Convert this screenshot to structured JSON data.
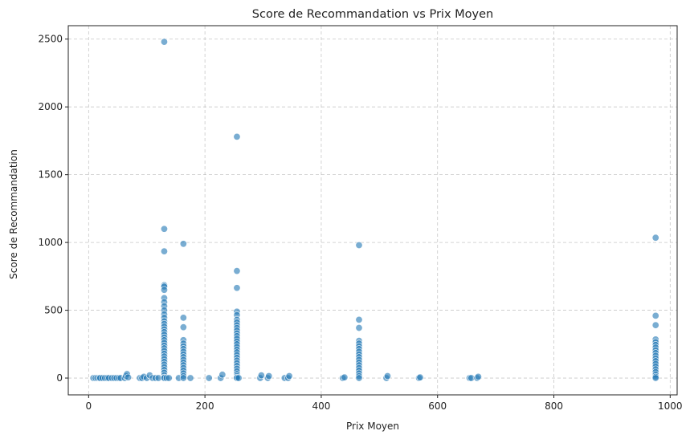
{
  "chart_data": {
    "type": "scatter",
    "title": "Score de Recommandation vs Prix Moyen",
    "xlabel": "Prix Moyen",
    "ylabel": "Score de Recommandation",
    "xlim": [
      -35,
      1012
    ],
    "ylim": [
      -124,
      2599
    ],
    "xticks": [
      0,
      200,
      400,
      600,
      800,
      1000
    ],
    "yticks": [
      0,
      500,
      1000,
      1500,
      2000,
      2500
    ],
    "xtick_labels": [
      "0",
      "200",
      "400",
      "600",
      "800",
      "1000"
    ],
    "ytick_labels": [
      "0",
      "500",
      "1000",
      "1500",
      "2000",
      "2500"
    ],
    "grid": true,
    "marker_color": "#1f77b4",
    "marker_alpha": 0.6,
    "series": [
      {
        "points": [
          [
            8,
            0
          ],
          [
            12,
            0
          ],
          [
            15,
            0
          ],
          [
            18,
            0
          ],
          [
            20,
            0
          ],
          [
            24,
            0
          ],
          [
            28,
            0
          ],
          [
            32,
            0
          ],
          [
            35,
            0
          ],
          [
            40,
            0
          ],
          [
            44,
            0
          ],
          [
            48,
            0
          ],
          [
            52,
            0
          ],
          [
            55,
            0
          ],
          [
            62,
            0
          ],
          [
            64,
            15
          ],
          [
            66,
            30
          ],
          [
            68,
            5
          ],
          [
            88,
            0
          ],
          [
            92,
            0
          ],
          [
            95,
            10
          ],
          [
            100,
            0
          ],
          [
            105,
            20
          ],
          [
            110,
            0
          ],
          [
            115,
            0
          ],
          [
            120,
            0
          ],
          [
            130,
            2480
          ],
          [
            130,
            1100
          ],
          [
            130,
            935
          ],
          [
            130,
            685
          ],
          [
            130,
            675
          ],
          [
            130,
            650
          ],
          [
            130,
            590
          ],
          [
            130,
            560
          ],
          [
            130,
            530
          ],
          [
            130,
            500
          ],
          [
            130,
            470
          ],
          [
            130,
            445
          ],
          [
            130,
            420
          ],
          [
            130,
            400
          ],
          [
            130,
            380
          ],
          [
            130,
            360
          ],
          [
            130,
            340
          ],
          [
            130,
            320
          ],
          [
            130,
            300
          ],
          [
            130,
            280
          ],
          [
            130,
            260
          ],
          [
            130,
            240
          ],
          [
            130,
            220
          ],
          [
            130,
            200
          ],
          [
            130,
            180
          ],
          [
            130,
            160
          ],
          [
            130,
            140
          ],
          [
            130,
            120
          ],
          [
            130,
            100
          ],
          [
            130,
            80
          ],
          [
            130,
            60
          ],
          [
            130,
            40
          ],
          [
            130,
            20
          ],
          [
            130,
            5
          ],
          [
            130,
            0
          ],
          [
            134,
            0
          ],
          [
            138,
            0
          ],
          [
            155,
            0
          ],
          [
            163,
            990
          ],
          [
            163,
            445
          ],
          [
            163,
            375
          ],
          [
            163,
            280
          ],
          [
            163,
            255
          ],
          [
            163,
            235
          ],
          [
            163,
            215
          ],
          [
            163,
            195
          ],
          [
            163,
            175
          ],
          [
            163,
            155
          ],
          [
            163,
            135
          ],
          [
            163,
            115
          ],
          [
            163,
            95
          ],
          [
            163,
            75
          ],
          [
            163,
            55
          ],
          [
            163,
            35
          ],
          [
            163,
            15
          ],
          [
            163,
            0
          ],
          [
            175,
            0
          ],
          [
            207,
            0
          ],
          [
            227,
            0
          ],
          [
            230,
            25
          ],
          [
            255,
            1780
          ],
          [
            255,
            790
          ],
          [
            255,
            665
          ],
          [
            255,
            490
          ],
          [
            255,
            465
          ],
          [
            255,
            430
          ],
          [
            255,
            410
          ],
          [
            255,
            390
          ],
          [
            255,
            370
          ],
          [
            255,
            350
          ],
          [
            255,
            330
          ],
          [
            255,
            310
          ],
          [
            255,
            290
          ],
          [
            255,
            270
          ],
          [
            255,
            250
          ],
          [
            255,
            230
          ],
          [
            255,
            210
          ],
          [
            255,
            190
          ],
          [
            255,
            170
          ],
          [
            255,
            150
          ],
          [
            255,
            130
          ],
          [
            255,
            110
          ],
          [
            255,
            90
          ],
          [
            255,
            70
          ],
          [
            255,
            50
          ],
          [
            255,
            30
          ],
          [
            255,
            15
          ],
          [
            255,
            5
          ],
          [
            255,
            0
          ],
          [
            258,
            0
          ],
          [
            295,
            0
          ],
          [
            297,
            20
          ],
          [
            308,
            0
          ],
          [
            310,
            15
          ],
          [
            337,
            0
          ],
          [
            343,
            0
          ],
          [
            345,
            15
          ],
          [
            437,
            0
          ],
          [
            440,
            5
          ],
          [
            465,
            980
          ],
          [
            465,
            430
          ],
          [
            465,
            370
          ],
          [
            465,
            275
          ],
          [
            465,
            255
          ],
          [
            465,
            235
          ],
          [
            465,
            215
          ],
          [
            465,
            195
          ],
          [
            465,
            175
          ],
          [
            465,
            155
          ],
          [
            465,
            135
          ],
          [
            465,
            115
          ],
          [
            465,
            95
          ],
          [
            465,
            75
          ],
          [
            465,
            55
          ],
          [
            465,
            35
          ],
          [
            465,
            15
          ],
          [
            465,
            0
          ],
          [
            512,
            0
          ],
          [
            514,
            15
          ],
          [
            568,
            0
          ],
          [
            570,
            5
          ],
          [
            655,
            0
          ],
          [
            658,
            0
          ],
          [
            668,
            0
          ],
          [
            670,
            10
          ],
          [
            975,
            1035
          ],
          [
            975,
            460
          ],
          [
            975,
            390
          ],
          [
            975,
            285
          ],
          [
            975,
            265
          ],
          [
            975,
            245
          ],
          [
            975,
            225
          ],
          [
            975,
            205
          ],
          [
            975,
            185
          ],
          [
            975,
            165
          ],
          [
            975,
            145
          ],
          [
            975,
            125
          ],
          [
            975,
            105
          ],
          [
            975,
            85
          ],
          [
            975,
            65
          ],
          [
            975,
            45
          ],
          [
            975,
            25
          ],
          [
            975,
            10
          ],
          [
            975,
            0
          ]
        ]
      }
    ]
  }
}
